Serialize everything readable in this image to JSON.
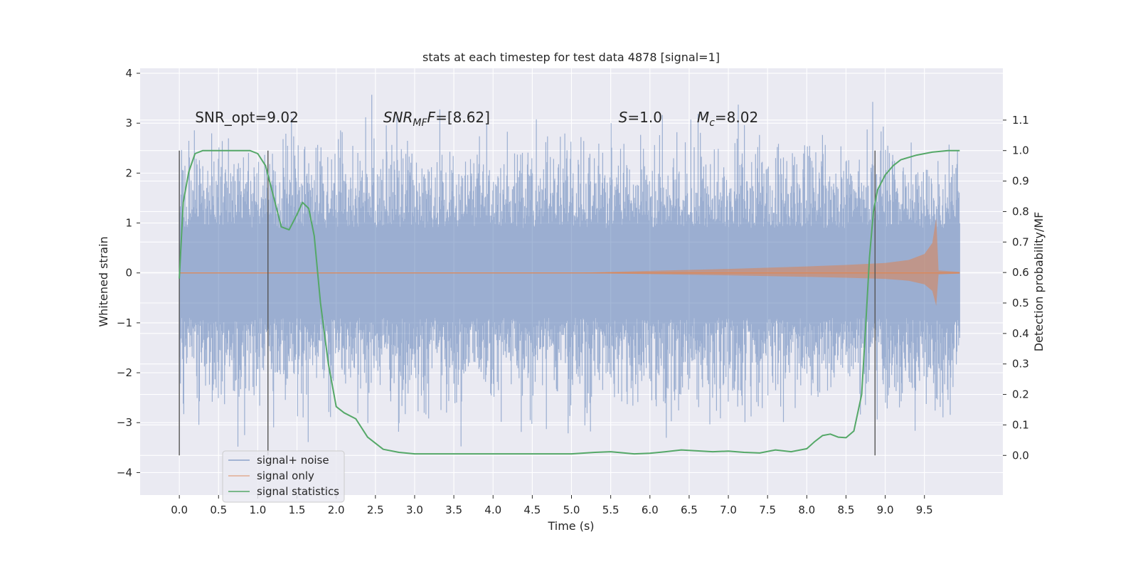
{
  "chart_data": {
    "type": "line",
    "title": "stats at each timestep for test data 4878 [signal=1]",
    "xlabel": "Time (s)",
    "ylabel": "Whitened strain",
    "y2label": "Detection probability/MF",
    "xlim": [
      -0.5,
      10.5
    ],
    "ylim": [
      -4.45,
      4.1
    ],
    "y2lim": [
      -0.13,
      1.27
    ],
    "x_ticks": [
      "0.0",
      "0.5",
      "1.0",
      "1.5",
      "2.0",
      "2.5",
      "3.0",
      "3.5",
      "4.0",
      "4.5",
      "5.0",
      "5.5",
      "6.0",
      "6.5",
      "7.0",
      "7.5",
      "8.0",
      "8.5",
      "9.0",
      "9.5"
    ],
    "y_ticks": [
      "−4",
      "−3",
      "−2",
      "−1",
      "0",
      "1",
      "2",
      "3",
      "4"
    ],
    "y2_ticks": [
      "0.0",
      "0.1",
      "0.2",
      "0.3",
      "0.4",
      "0.5",
      "0.6",
      "0.7",
      "0.8",
      "0.9",
      "1.0",
      "1.1"
    ],
    "grid": true,
    "legend_position": "lower-left",
    "colors": {
      "background": "#eaeaf2",
      "grid": "#ffffff",
      "noise": "#4c72b0",
      "signal": "#dd8452",
      "stats": "#55a868",
      "vline": "#555555"
    },
    "annotations": [
      {
        "id": "snr-opt",
        "label": "SNR_opt=9.02",
        "x": 0.2,
        "y": 3.0
      },
      {
        "id": "snr-mf",
        "label_main": "SNR",
        "label_sub": "MF",
        "label_rest": "F=[8.62]",
        "x": 2.6,
        "y": 3.0
      },
      {
        "id": "s-value",
        "label_main": "S",
        "label_rest": "=1.0",
        "x": 5.6,
        "y": 3.0
      },
      {
        "id": "mc-value",
        "label_main": "M",
        "label_sub": "c",
        "label_rest": "=8.02",
        "x": 6.6,
        "y": 3.0
      }
    ],
    "vlines": [
      0.0,
      1.13,
      8.87
    ],
    "series": [
      {
        "name": "signal+ noise",
        "description_x_range": [
          0.0,
          9.95
        ],
        "typical_envelope": 2.2,
        "max": 3.75,
        "min": -3.55
      },
      {
        "name": "signal only",
        "x": [
          0.0,
          5.0,
          6.0,
          7.0,
          8.0,
          8.5,
          9.0,
          9.3,
          9.5,
          9.6,
          9.65,
          9.68,
          9.95
        ],
        "amplitude": [
          0.0,
          0.0,
          0.04,
          0.08,
          0.13,
          0.16,
          0.2,
          0.26,
          0.38,
          0.6,
          1.1,
          0.05,
          0.02
        ]
      },
      {
        "name": "signal statistics",
        "axis": "right",
        "x": [
          0.0,
          0.05,
          0.12,
          0.2,
          0.3,
          0.5,
          0.7,
          0.9,
          1.0,
          1.1,
          1.2,
          1.3,
          1.4,
          1.5,
          1.57,
          1.65,
          1.72,
          1.8,
          1.9,
          2.0,
          2.1,
          2.25,
          2.4,
          2.6,
          2.8,
          3.0,
          3.5,
          4.0,
          4.5,
          5.0,
          5.3,
          5.5,
          5.8,
          6.0,
          6.2,
          6.4,
          6.6,
          6.8,
          7.0,
          7.2,
          7.4,
          7.6,
          7.8,
          8.0,
          8.1,
          8.2,
          8.3,
          8.4,
          8.5,
          8.6,
          8.7,
          8.75,
          8.8,
          8.85,
          8.9,
          9.0,
          9.1,
          9.2,
          9.4,
          9.6,
          9.8,
          9.95
        ],
        "y": [
          0.58,
          0.83,
          0.93,
          0.99,
          1.0,
          1.0,
          1.0,
          1.0,
          0.99,
          0.95,
          0.85,
          0.75,
          0.74,
          0.79,
          0.83,
          0.81,
          0.72,
          0.5,
          0.3,
          0.16,
          0.14,
          0.12,
          0.06,
          0.02,
          0.01,
          0.005,
          0.005,
          0.005,
          0.005,
          0.005,
          0.01,
          0.012,
          0.005,
          0.007,
          0.012,
          0.018,
          0.015,
          0.012,
          0.014,
          0.01,
          0.008,
          0.018,
          0.012,
          0.022,
          0.045,
          0.065,
          0.07,
          0.06,
          0.058,
          0.08,
          0.2,
          0.42,
          0.65,
          0.8,
          0.87,
          0.92,
          0.95,
          0.97,
          0.985,
          0.995,
          1.0,
          1.0
        ]
      }
    ]
  }
}
